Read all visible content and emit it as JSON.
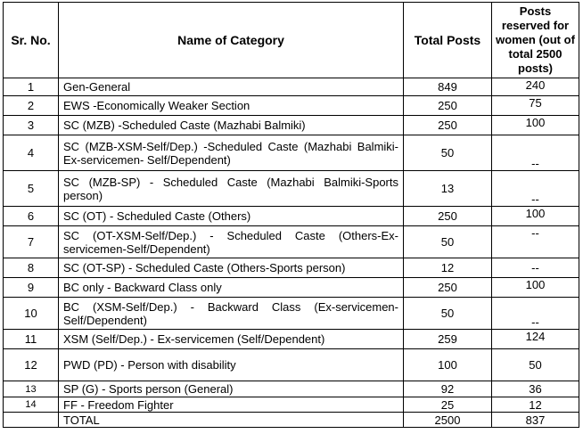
{
  "header": {
    "sr": "Sr. No.",
    "name": "Name of Category",
    "total": "Total Posts",
    "women": "Posts reserved for women (out of total 2500 posts)"
  },
  "rows": [
    {
      "sr": "1",
      "name": "Gen-General",
      "total": "849",
      "women": "240"
    },
    {
      "sr": "2",
      "name": "EWS -Economically Weaker Section",
      "total": "250",
      "women": "75"
    },
    {
      "sr": "3",
      "name": "SC (MZB) -Scheduled Caste (Mazhabi Balmiki)",
      "total": "250",
      "women": "100"
    },
    {
      "sr": "4",
      "name": "SC (MZB-XSM-Self/Dep.) -Scheduled Caste (Mazhabi Balmiki-Ex-servicemen- Self/Dependent)",
      "total": "50",
      "women": "--"
    },
    {
      "sr": "5",
      "name": "SC (MZB-SP) - Scheduled Caste (Mazhabi Balmiki-Sports person)",
      "total": "13",
      "women": "--"
    },
    {
      "sr": "6",
      "name": "SC (OT) - Scheduled Caste (Others)",
      "total": "250",
      "women": "100"
    },
    {
      "sr": "7",
      "name": "SC (OT-XSM-Self/Dep.) - Scheduled Caste (Others-Ex-servicemen-Self/Dependent)",
      "total": "50",
      "women": "--"
    },
    {
      "sr": "8",
      "name": "SC (OT-SP) - Scheduled Caste (Others-Sports person)",
      "total": "12",
      "women": "--"
    },
    {
      "sr": "9",
      "name": "BC only - Backward Class only",
      "total": "250",
      "women": "100"
    },
    {
      "sr": "10",
      "name": "BC (XSM-Self/Dep.) - Backward Class (Ex-servicemen-Self/Dependent)",
      "total": "50",
      "women": "--"
    },
    {
      "sr": "11",
      "name": "XSM (Self/Dep.) - Ex-servicemen (Self/Dependent)",
      "total": "259",
      "women": "124"
    },
    {
      "sr": "12",
      "name": "PWD (PD) - Person with disability",
      "total": "100",
      "women": "50"
    },
    {
      "sr": "13",
      "name": "SP (G) - Sports person (General)",
      "total": "92",
      "women": "36"
    },
    {
      "sr": "14",
      "name": "FF - Freedom Fighter",
      "total": "25",
      "women": "12"
    },
    {
      "sr": "",
      "name": "TOTAL",
      "total": "2500",
      "women": "837"
    }
  ]
}
